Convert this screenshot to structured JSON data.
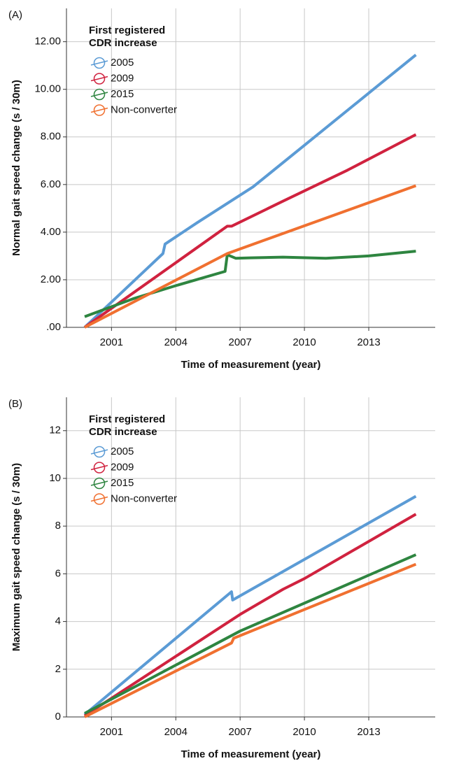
{
  "chart_data": [
    {
      "type": "line",
      "panel_label": "(A)",
      "xlabel": "Time of measurement (year)",
      "ylabel": "Normal gait speed change (s / 30m)",
      "legend_title": [
        "First registered",
        "CDR increase"
      ],
      "xlim": [
        1998.9,
        2016.1
      ],
      "xticks": [
        2001,
        2004,
        2007,
        2010,
        2013
      ],
      "ylim": [
        0,
        13.4
      ],
      "yticks": [
        {
          "value": 0,
          "label": ".00"
        },
        {
          "value": 2,
          "label": "2.00"
        },
        {
          "value": 4,
          "label": "4.00"
        },
        {
          "value": 6,
          "label": "6.00"
        },
        {
          "value": 8,
          "label": "8.00"
        },
        {
          "value": 10,
          "label": "10.00"
        },
        {
          "value": 12,
          "label": "12.00"
        }
      ],
      "grid": true,
      "series": [
        {
          "name": "2005",
          "color": "#5b9bd5",
          "x": [
            1999.75,
            2003.4,
            2003.5,
            2005,
            2007.6,
            2010,
            2015.2
          ],
          "values": [
            0,
            3.1,
            3.5,
            4.4,
            5.9,
            7.65,
            11.45
          ]
        },
        {
          "name": "2009",
          "color": "#d0223f",
          "x": [
            1999.75,
            2006.4,
            2006.6,
            2009,
            2012,
            2015.2
          ],
          "values": [
            0,
            4.25,
            4.25,
            5.3,
            6.6,
            8.1
          ]
        },
        {
          "name": "2015",
          "color": "#2e8540",
          "x": [
            1999.75,
            2002,
            2004,
            2006.3,
            2006.4,
            2006.8,
            2007.5,
            2009,
            2011,
            2013,
            2015.2
          ],
          "values": [
            0.45,
            1.2,
            1.75,
            2.35,
            3.05,
            2.9,
            2.92,
            2.95,
            2.9,
            3.0,
            3.2
          ]
        },
        {
          "name": "Non-converter",
          "color": "#f07030",
          "x": [
            1999.75,
            2006.4,
            2015.2
          ],
          "values": [
            0,
            3.1,
            5.95
          ]
        }
      ]
    },
    {
      "type": "line",
      "panel_label": "(B)",
      "xlabel": "Time of measurement (year)",
      "ylabel": "Maximum gait speed change (s / 30m)",
      "legend_title": [
        "First registered",
        "CDR increase"
      ],
      "xlim": [
        1998.9,
        2016.1
      ],
      "xticks": [
        2001,
        2004,
        2007,
        2010,
        2013
      ],
      "ylim": [
        0,
        13.4
      ],
      "yticks": [
        0,
        2,
        4,
        6,
        8,
        10,
        12
      ],
      "grid": true,
      "series": [
        {
          "name": "2005",
          "color": "#5b9bd5",
          "x": [
            1999.75,
            2006.6,
            2006.65,
            2015.2
          ],
          "values": [
            0.1,
            5.25,
            4.9,
            9.25
          ]
        },
        {
          "name": "2009",
          "color": "#d0223f",
          "x": [
            1999.75,
            2007,
            2009,
            2010,
            2015.2
          ],
          "values": [
            0.05,
            4.3,
            5.35,
            5.8,
            8.5
          ]
        },
        {
          "name": "2015",
          "color": "#2e8540",
          "x": [
            1999.75,
            2007,
            2015.2
          ],
          "values": [
            0.15,
            3.6,
            6.8
          ]
        },
        {
          "name": "Non-converter",
          "color": "#f07030",
          "x": [
            1999.75,
            2006.6,
            2006.7,
            2015.2
          ],
          "values": [
            0,
            3.1,
            3.3,
            6.4
          ]
        }
      ]
    }
  ]
}
